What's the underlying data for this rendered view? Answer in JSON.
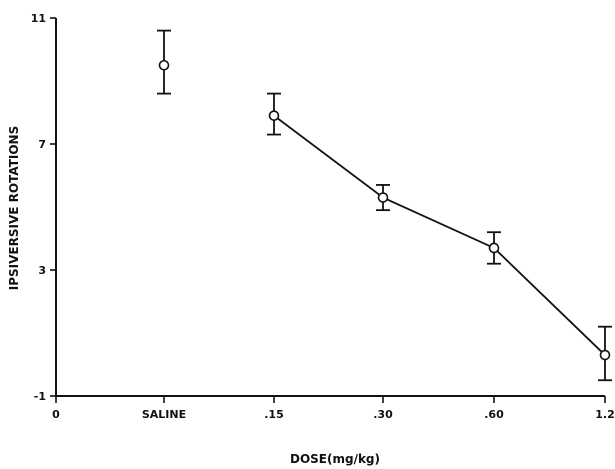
{
  "chart_data": {
    "type": "line",
    "title": "",
    "xlabel": "DOSE(mg/kg)",
    "ylabel": "IPSIVERSIVE ROTATIONS",
    "categories": [
      "0",
      "SALINE",
      ".15",
      ".30",
      ".60",
      "1.2"
    ],
    "ylim": [
      -1,
      11
    ],
    "yticks": [
      -1,
      3,
      7,
      11
    ],
    "grid": false,
    "legend": "none",
    "points": [
      {
        "x": "SALINE",
        "y": 9.5,
        "err_low": 8.6,
        "err_high": 10.6,
        "connected": false
      },
      {
        "x": ".15",
        "y": 7.9,
        "err_low": 7.3,
        "err_high": 8.6,
        "connected": true
      },
      {
        "x": ".30",
        "y": 5.3,
        "err_low": 4.9,
        "err_high": 5.7,
        "connected": true
      },
      {
        "x": ".60",
        "y": 3.7,
        "err_low": 3.2,
        "err_high": 4.2,
        "connected": true
      },
      {
        "x": "1.2",
        "y": 0.3,
        "err_low": -0.5,
        "err_high": 1.2,
        "connected": true
      }
    ]
  }
}
